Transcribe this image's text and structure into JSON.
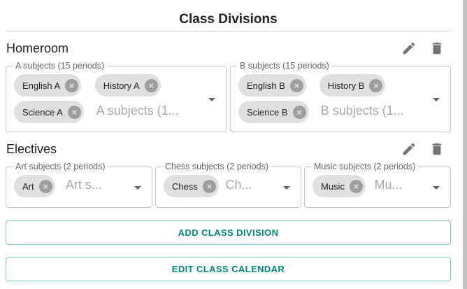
{
  "title": "Class Divisions",
  "divisions": [
    {
      "name": "Homeroom",
      "fields": [
        {
          "label": "A subjects (15 periods)",
          "chips": [
            "English A",
            "History A",
            "Science A"
          ],
          "placeholder": "A subjects (1..."
        },
        {
          "label": "B subjects (15 periods)",
          "chips": [
            "English B",
            "History B",
            "Science B"
          ],
          "placeholder": "B subjects (1..."
        }
      ]
    },
    {
      "name": "Electives",
      "fields": [
        {
          "label": "Art subjects (2 periods)",
          "chips": [
            "Art"
          ],
          "placeholder": "Art s..."
        },
        {
          "label": "Chess subjects (2 periods)",
          "chips": [
            "Chess"
          ],
          "placeholder": "Ch..."
        },
        {
          "label": "Music subjects (2 periods)",
          "chips": [
            "Music"
          ],
          "placeholder": "Mu..."
        }
      ]
    }
  ],
  "icons": {
    "edit": "pencil-icon",
    "delete": "trash-icon",
    "remove": "cancel-circle-icon",
    "dropdown": "arrow-drop-down-icon"
  },
  "buttons": {
    "add": "ADD CLASS DIVISION",
    "calendar": "EDIT CLASS CALENDAR"
  },
  "colors": {
    "accent": "#00897b"
  }
}
